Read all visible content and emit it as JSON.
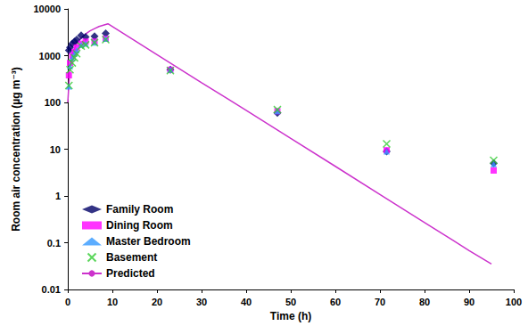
{
  "chart_data": {
    "type": "scatter",
    "x_label": "Time (h)",
    "y_label": "Room air concentration (µg m⁻³)",
    "xlim": [
      0,
      100
    ],
    "xticks": [
      0,
      10,
      20,
      30,
      40,
      50,
      60,
      70,
      80,
      90,
      100
    ],
    "ylim": [
      0.01,
      10000
    ],
    "yticks": [
      0.01,
      0.1,
      1,
      10,
      100,
      1000,
      10000
    ],
    "log": "y",
    "grid": false,
    "legend": "lower left",
    "series": [
      {
        "name": "Family Room",
        "color": "#000066",
        "marker": "diamond",
        "x": [
          0.25,
          0.5,
          1,
          1.5,
          2,
          3,
          4,
          6,
          8.5,
          23,
          47,
          71.5,
          95.5
        ],
        "values": [
          1300,
          1500,
          1800,
          2000,
          2200,
          2700,
          2500,
          2600,
          3000,
          500,
          60,
          9,
          5
        ]
      },
      {
        "name": "Dining Room",
        "color": "#ff00ff",
        "marker": "square",
        "x": [
          0.25,
          0.5,
          1,
          1.5,
          2,
          3,
          4,
          6,
          8.5,
          23,
          47,
          71.5,
          95.5
        ],
        "values": [
          380,
          700,
          1000,
          1200,
          1500,
          1800,
          2000,
          2000,
          2300,
          500,
          65,
          9.5,
          3.5
        ]
      },
      {
        "name": "Master Bedroom",
        "color": "#3399ff",
        "marker": "triangle",
        "x": [
          0.25,
          0.5,
          1,
          1.5,
          2,
          3,
          4,
          6,
          8.5,
          23,
          47,
          71.5,
          95.5
        ],
        "values": [
          220,
          600,
          900,
          1100,
          1300,
          1700,
          1800,
          1900,
          2300,
          500,
          65,
          9,
          4.8
        ]
      },
      {
        "name": "Basement",
        "color": "#33cc33",
        "marker": "x",
        "x": [
          0.25,
          0.5,
          1,
          1.5,
          2,
          3,
          4,
          6,
          8.5,
          23,
          47,
          71.5,
          95.5
        ],
        "values": [
          230,
          500,
          700,
          900,
          1100,
          1600,
          1700,
          1900,
          2200,
          480,
          70,
          13,
          5.8
        ]
      },
      {
        "name": "Predicted",
        "color": "#cc33cc",
        "type": "line",
        "line_style": "solid",
        "x": [
          0,
          0.5,
          1,
          2,
          3,
          4,
          5,
          6,
          7,
          8,
          9,
          20,
          30,
          40,
          50,
          60,
          70,
          80,
          90,
          95
        ],
        "values": [
          100,
          600,
          1100,
          1800,
          2400,
          2900,
          3400,
          3800,
          4200,
          4500,
          4800,
          1050,
          265,
          68,
          17,
          4.3,
          1.07,
          0.27,
          0.068,
          0.035
        ]
      }
    ]
  }
}
